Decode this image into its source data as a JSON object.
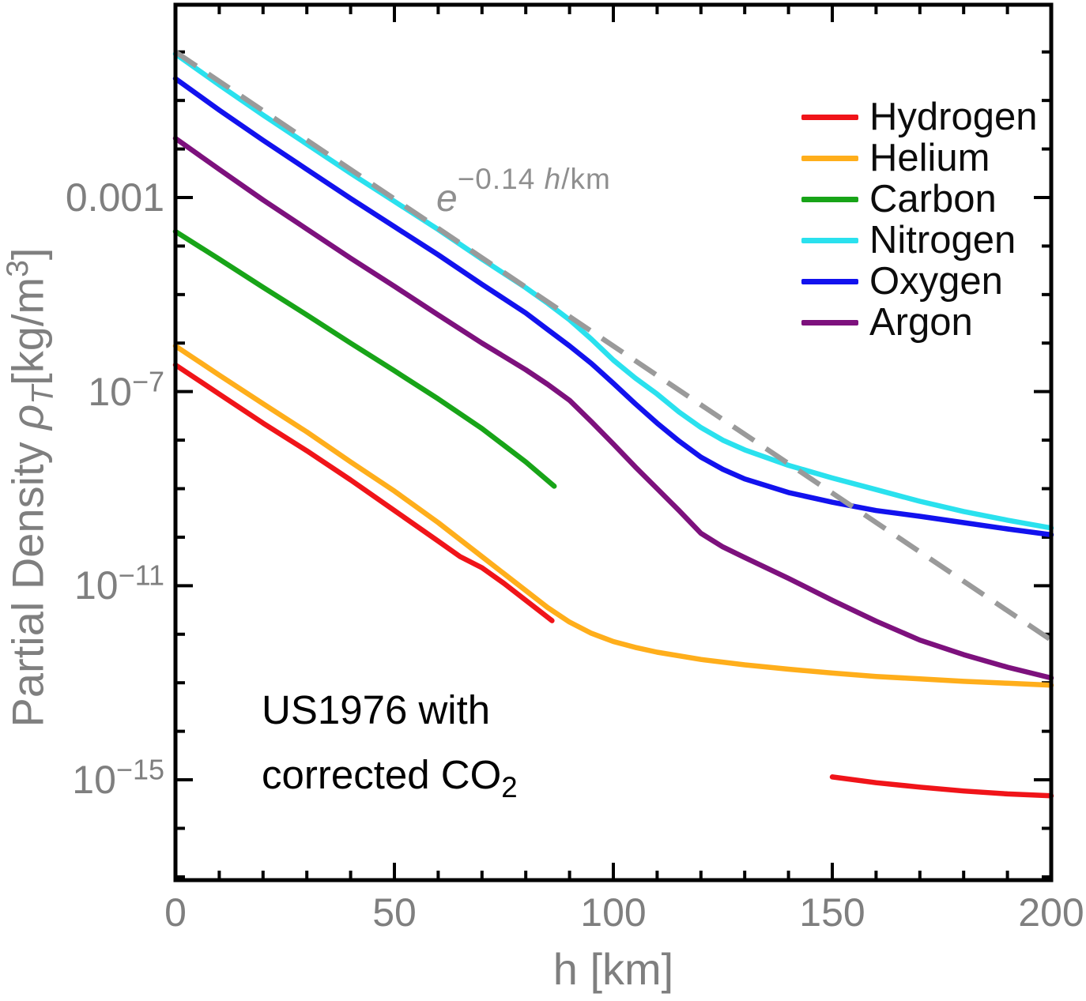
{
  "figure": {
    "background": "#ffffff"
  },
  "axes": {
    "x": {
      "label": "h [km]",
      "tick_labels": [
        "0",
        "50",
        "100",
        "150",
        "200"
      ],
      "tick_values": [
        0,
        50,
        100,
        150,
        200
      ],
      "minor_tick_step_km": 10,
      "range_km": [
        0,
        200
      ]
    },
    "y": {
      "label_parts": {
        "prefix": "Partial Density ",
        "symbol": "ρ",
        "symbol_sub": "T",
        "unit_open": "[kg/m",
        "unit_exp": "3",
        "unit_close": "]"
      },
      "scale": "log10",
      "tick_labels": [
        {
          "text": "0.001"
        },
        {
          "base": "10",
          "exp": "−7"
        },
        {
          "base": "10",
          "exp": "−11"
        },
        {
          "base": "10",
          "exp": "−15"
        }
      ],
      "tick_exponents": [
        -3,
        -7,
        -11,
        -15
      ],
      "minor_tick_exponents": [
        0,
        -1,
        -2,
        -4,
        -5,
        -6,
        -8,
        -9,
        -10,
        -12,
        -13,
        -14,
        -16,
        -17
      ]
    }
  },
  "legend": {
    "position": "upper right",
    "items": [
      {
        "label": "Hydrogen",
        "color": "#f01419"
      },
      {
        "label": "Helium",
        "color": "#ffae1b"
      },
      {
        "label": "Carbon",
        "color": "#18a418"
      },
      {
        "label": "Nitrogen",
        "color": "#2ae1ee"
      },
      {
        "label": "Oxygen",
        "color": "#1212ee"
      },
      {
        "label": "Argon",
        "color": "#7d117d"
      }
    ]
  },
  "annotations": {
    "exponential": {
      "base": "e",
      "exp_coeff": "−0.14 ",
      "exp_var": "h",
      "exp_unit": "/km"
    },
    "model": {
      "line1": "US1976 with",
      "line2_text": "corrected CO",
      "line2_sub": "2"
    }
  },
  "chart_data": {
    "type": "line",
    "title": "",
    "xlabel": "h [km]",
    "ylabel": "Partial Density ρT [kg/m³]",
    "x_range_km": [
      0,
      200
    ],
    "y_scale": "log10 kg/m³, labeled ticks at 10^-3, 10^-7, 10^-11, 10^-15",
    "grid": false,
    "legend_position": "upper right",
    "point_format": "[altitude_km, log10_of_partial_density_kg_per_m3]",
    "series": [
      {
        "name": "Hydrogen",
        "color": "#f01419",
        "style": "solid",
        "in_legend": true,
        "segments": [
          [
            [
              0,
              -6.45
            ],
            [
              10,
              -7.05
            ],
            [
              20,
              -7.65
            ],
            [
              30,
              -8.22
            ],
            [
              40,
              -8.82
            ],
            [
              50,
              -9.45
            ],
            [
              60,
              -10.08
            ],
            [
              65,
              -10.4
            ],
            [
              70,
              -10.63
            ],
            [
              75,
              -10.95
            ],
            [
              80,
              -11.3
            ],
            [
              86,
              -11.72
            ]
          ],
          [
            [
              150,
              -14.94
            ],
            [
              160,
              -15.06
            ],
            [
              170,
              -15.15
            ],
            [
              180,
              -15.23
            ],
            [
              190,
              -15.29
            ],
            [
              200,
              -15.33
            ]
          ]
        ]
      },
      {
        "name": "Helium",
        "color": "#ffae1b",
        "style": "solid",
        "in_legend": true,
        "segments": [
          [
            [
              0,
              -6.06
            ],
            [
              10,
              -6.66
            ],
            [
              20,
              -7.25
            ],
            [
              30,
              -7.83
            ],
            [
              40,
              -8.45
            ],
            [
              50,
              -9.05
            ],
            [
              60,
              -9.7
            ],
            [
              70,
              -10.4
            ],
            [
              75,
              -10.75
            ],
            [
              80,
              -11.1
            ],
            [
              85,
              -11.45
            ],
            [
              90,
              -11.75
            ],
            [
              95,
              -11.98
            ],
            [
              100,
              -12.15
            ],
            [
              105,
              -12.27
            ],
            [
              110,
              -12.37
            ],
            [
              120,
              -12.52
            ],
            [
              130,
              -12.63
            ],
            [
              140,
              -12.72
            ],
            [
              150,
              -12.8
            ],
            [
              160,
              -12.87
            ],
            [
              170,
              -12.92
            ],
            [
              180,
              -12.97
            ],
            [
              190,
              -13.01
            ],
            [
              200,
              -13.05
            ]
          ]
        ]
      },
      {
        "name": "Carbon",
        "color": "#18a418",
        "style": "solid",
        "in_legend": true,
        "segments": [
          [
            [
              0,
              -3.7
            ],
            [
              10,
              -4.27
            ],
            [
              20,
              -4.85
            ],
            [
              30,
              -5.42
            ],
            [
              40,
              -6.0
            ],
            [
              50,
              -6.57
            ],
            [
              60,
              -7.15
            ],
            [
              70,
              -7.76
            ],
            [
              80,
              -8.45
            ],
            [
              86.5,
              -8.95
            ]
          ]
        ]
      },
      {
        "name": "Nitrogen",
        "color": "#2ae1ee",
        "style": "solid",
        "in_legend": true,
        "segments": [
          [
            [
              0,
              -0.04
            ],
            [
              10,
              -0.68
            ],
            [
              20,
              -1.3
            ],
            [
              30,
              -1.9
            ],
            [
              40,
              -2.5
            ],
            [
              50,
              -3.08
            ],
            [
              60,
              -3.66
            ],
            [
              70,
              -4.27
            ],
            [
              80,
              -4.86
            ],
            [
              85,
              -5.18
            ],
            [
              90,
              -5.52
            ],
            [
              95,
              -5.92
            ],
            [
              100,
              -6.35
            ],
            [
              105,
              -6.72
            ],
            [
              110,
              -7.05
            ],
            [
              115,
              -7.42
            ],
            [
              120,
              -7.74
            ],
            [
              125,
              -8.0
            ],
            [
              130,
              -8.2
            ],
            [
              140,
              -8.52
            ],
            [
              150,
              -8.78
            ],
            [
              160,
              -9.02
            ],
            [
              170,
              -9.26
            ],
            [
              180,
              -9.47
            ],
            [
              190,
              -9.65
            ],
            [
              200,
              -9.81
            ]
          ]
        ]
      },
      {
        "name": "Oxygen",
        "color": "#1212ee",
        "style": "solid",
        "in_legend": true,
        "segments": [
          [
            [
              0,
              -0.55
            ],
            [
              10,
              -1.2
            ],
            [
              20,
              -1.82
            ],
            [
              30,
              -2.42
            ],
            [
              40,
              -3.02
            ],
            [
              50,
              -3.6
            ],
            [
              60,
              -4.18
            ],
            [
              70,
              -4.79
            ],
            [
              80,
              -5.38
            ],
            [
              85,
              -5.72
            ],
            [
              90,
              -6.06
            ],
            [
              95,
              -6.42
            ],
            [
              100,
              -6.83
            ],
            [
              105,
              -7.25
            ],
            [
              110,
              -7.65
            ],
            [
              115,
              -8.02
            ],
            [
              120,
              -8.35
            ],
            [
              125,
              -8.6
            ],
            [
              130,
              -8.8
            ],
            [
              140,
              -9.08
            ],
            [
              150,
              -9.28
            ],
            [
              160,
              -9.45
            ],
            [
              170,
              -9.57
            ],
            [
              180,
              -9.7
            ],
            [
              190,
              -9.83
            ],
            [
              200,
              -9.95
            ]
          ]
        ]
      },
      {
        "name": "Argon",
        "color": "#7d117d",
        "style": "solid",
        "in_legend": true,
        "segments": [
          [
            [
              0,
              -1.78
            ],
            [
              10,
              -2.42
            ],
            [
              20,
              -3.05
            ],
            [
              30,
              -3.65
            ],
            [
              40,
              -4.25
            ],
            [
              50,
              -4.83
            ],
            [
              60,
              -5.42
            ],
            [
              70,
              -6.0
            ],
            [
              80,
              -6.55
            ],
            [
              85,
              -6.85
            ],
            [
              90,
              -7.18
            ],
            [
              95,
              -7.62
            ],
            [
              100,
              -8.08
            ],
            [
              105,
              -8.55
            ],
            [
              110,
              -9.0
            ],
            [
              115,
              -9.45
            ],
            [
              120,
              -9.92
            ],
            [
              125,
              -10.2
            ],
            [
              130,
              -10.42
            ],
            [
              140,
              -10.85
            ],
            [
              150,
              -11.3
            ],
            [
              160,
              -11.73
            ],
            [
              170,
              -12.12
            ],
            [
              180,
              -12.42
            ],
            [
              190,
              -12.68
            ],
            [
              200,
              -12.9
            ]
          ]
        ]
      },
      {
        "name": "e^(−0.14 h/km) reference",
        "color": "#9a9a9a",
        "style": "dashed",
        "in_legend": false,
        "segments": [
          [
            [
              0,
              0.0
            ],
            [
              200,
              -12.12
            ]
          ]
        ]
      }
    ]
  }
}
